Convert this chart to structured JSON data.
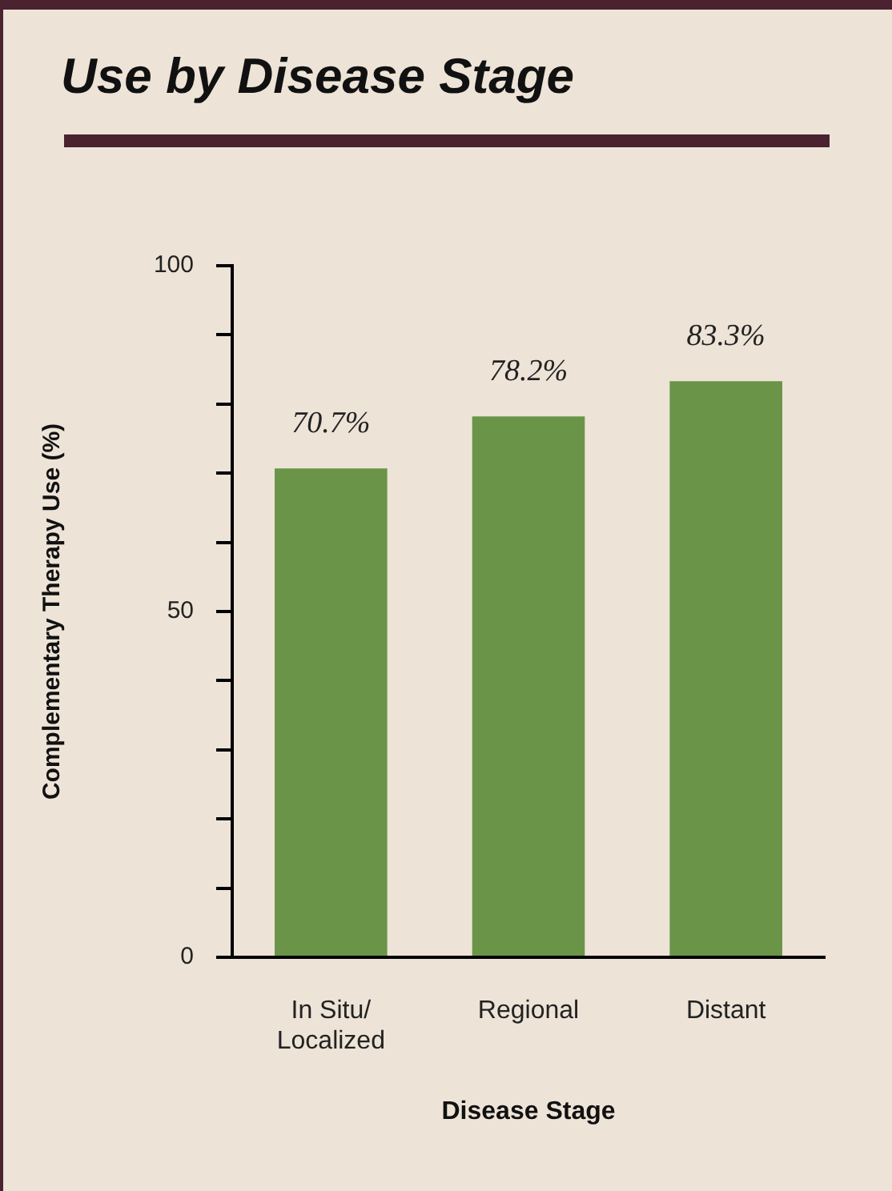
{
  "chart_data": {
    "type": "bar",
    "title": "Use by Disease Stage",
    "xlabel": "Disease Stage",
    "ylabel": "Complementary Therapy Use (%)",
    "categories": [
      "In Situ/ Localized",
      "Regional",
      "Distant"
    ],
    "values": [
      70.7,
      78.2,
      83.3
    ],
    "value_labels": [
      "70.7%",
      "78.2%",
      "83.3%"
    ],
    "color": "#6a9448",
    "ylim": [
      0,
      100
    ],
    "yticks": [
      0,
      {
        "value": 10,
        "label": null
      },
      {
        "value": 20,
        "label": null
      },
      {
        "value": 30,
        "label": null
      },
      {
        "value": 40,
        "label": null
      },
      50,
      {
        "value": 60,
        "label": null
      },
      {
        "value": 70,
        "label": null
      },
      {
        "value": 80,
        "label": null
      },
      {
        "value": 90,
        "label": null
      },
      100
    ],
    "grid": false,
    "legend": false
  }
}
